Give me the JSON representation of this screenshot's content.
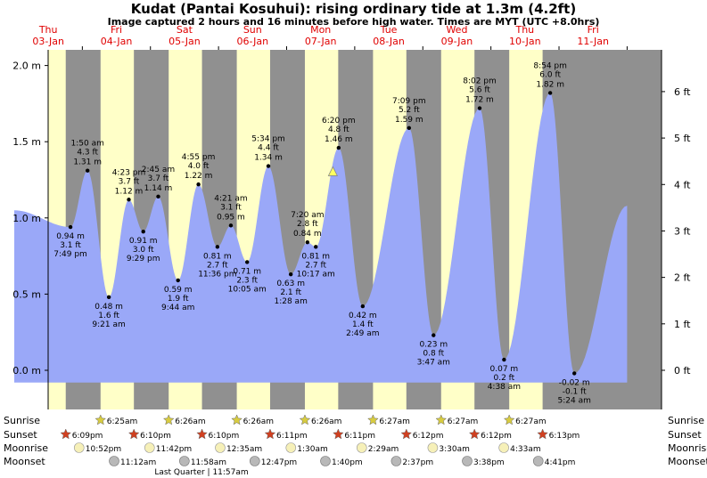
{
  "title": "Kudat (Pantai Kosuhui): rising  ordinary tide at 1.3m (4.2ft)",
  "subtitle": "Image captured 2 hours and 16 minutes before high water. Times are MYT (UTC +8.0hrs)",
  "colors": {
    "day": "#ffffc8",
    "night": "#909090",
    "tide": "#9aa8f8",
    "day_label": "#e00000",
    "sunrise_star": "#d8cc40",
    "sunset_star": "#d04020",
    "moon": "#f6f0b8",
    "moonset": "#b8b8b8"
  },
  "days": [
    {
      "name": "Thu",
      "date": "03-Jan"
    },
    {
      "name": "Fri",
      "date": "04-Jan"
    },
    {
      "name": "Sat",
      "date": "05-Jan"
    },
    {
      "name": "Sun",
      "date": "06-Jan"
    },
    {
      "name": "Mon",
      "date": "07-Jan"
    },
    {
      "name": "Tue",
      "date": "08-Jan"
    },
    {
      "name": "Wed",
      "date": "09-Jan"
    },
    {
      "name": "Thu",
      "date": "10-Jan"
    },
    {
      "name": "Fri",
      "date": "11-Jan"
    }
  ],
  "chart_data": {
    "type": "area",
    "title": "Kudat (Pantai Kosuhui): rising  ordinary tide at 1.3m (4.2ft)",
    "x_unit": "hours from 00:00 03-Jan (MYT)",
    "x_range": [
      0,
      216
    ],
    "ylim_m": [
      -0.1,
      2.1
    ],
    "y_ticks_m": [
      "2.0 m",
      "1.5 m",
      "1.0 m",
      "0.5 m",
      "0.0 m"
    ],
    "y_ticks_ft": [
      "6 ft",
      "5 ft",
      "4 ft",
      "3 ft",
      "2 ft",
      "1 ft",
      "0 ft"
    ],
    "grid": false,
    "start_level_m": 1.05,
    "end_level_m": 1.08,
    "current": {
      "label": "rising tide at 1.3m (4.2ft)",
      "level_m": 1.3
    },
    "extremes": [
      {
        "t": "7:49 pm",
        "m": "0.94 m",
        "ft": "3.1 ft",
        "x": 19.82,
        "y": 0.94,
        "pos": "below"
      },
      {
        "t": "1:50 am",
        "m": "1.31 m",
        "ft": "4.3 ft",
        "x": 25.83,
        "y": 1.31,
        "pos": "above"
      },
      {
        "t": "9:21 am",
        "m": "0.48 m",
        "ft": "1.6 ft",
        "x": 33.35,
        "y": 0.48,
        "pos": "below"
      },
      {
        "t": "4:23 pm",
        "m": "1.12 m",
        "ft": "3.7 ft",
        "x": 40.38,
        "y": 1.12,
        "pos": "above"
      },
      {
        "t": "9:29 pm",
        "m": "0.91 m",
        "ft": "3.0 ft",
        "x": 45.48,
        "y": 0.91,
        "pos": "below"
      },
      {
        "t": "2:45 am",
        "m": "1.14 m",
        "ft": "3.7 ft",
        "x": 50.75,
        "y": 1.14,
        "pos": "above"
      },
      {
        "t": "9:44 am",
        "m": "0.59 m",
        "ft": "1.9 ft",
        "x": 57.73,
        "y": 0.59,
        "pos": "below"
      },
      {
        "t": "4:55 pm",
        "m": "1.22 m",
        "ft": "4.0 ft",
        "x": 64.92,
        "y": 1.22,
        "pos": "above"
      },
      {
        "t": "11:36 pm",
        "m": "0.81 m",
        "ft": "2.7 ft",
        "x": 71.6,
        "y": 0.81,
        "pos": "below"
      },
      {
        "t": "4:21 am",
        "m": "0.95 m",
        "ft": "3.1 ft",
        "x": 76.35,
        "y": 0.95,
        "pos": "above"
      },
      {
        "t": "10:05 am",
        "m": "0.71 m",
        "ft": "2.3 ft",
        "x": 82.08,
        "y": 0.71,
        "pos": "below"
      },
      {
        "t": "5:34 pm",
        "m": "1.34 m",
        "ft": "4.4 ft",
        "x": 89.57,
        "y": 1.34,
        "pos": "above"
      },
      {
        "t": "1:28 am",
        "m": "0.63 m",
        "ft": "2.1 ft",
        "x": 97.47,
        "y": 0.63,
        "pos": "below"
      },
      {
        "t": "7:20 am",
        "m": "0.84 m",
        "ft": "2.8 ft",
        "x": 103.33,
        "y": 0.84,
        "pos": "above"
      },
      {
        "t": "10:17 am",
        "m": "0.81 m",
        "ft": "2.7 ft",
        "x": 106.28,
        "y": 0.81,
        "pos": "below"
      },
      {
        "t": "6:20 pm",
        "m": "1.46 m",
        "ft": "4.8 ft",
        "x": 114.33,
        "y": 1.46,
        "pos": "above"
      },
      {
        "t": "2:49 am",
        "m": "0.42 m",
        "ft": "1.4 ft",
        "x": 122.82,
        "y": 0.42,
        "pos": "below"
      },
      {
        "t": "7:09 pm",
        "m": "1.59 m",
        "ft": "5.2 ft",
        "x": 139.15,
        "y": 1.59,
        "pos": "above"
      },
      {
        "t": "3:47 am",
        "m": "0.23 m",
        "ft": "0.8 ft",
        "x": 147.78,
        "y": 0.23,
        "pos": "below"
      },
      {
        "t": "8:02 pm",
        "m": "1.72 m",
        "ft": "5.6 ft",
        "x": 164.03,
        "y": 1.72,
        "pos": "above"
      },
      {
        "t": "4:38 am",
        "m": "0.07 m",
        "ft": "0.2 ft",
        "x": 172.63,
        "y": 0.07,
        "pos": "below"
      },
      {
        "t": "8:54 pm",
        "m": "1.82 m",
        "ft": "6.0 ft",
        "x": 188.9,
        "y": 1.82,
        "pos": "above"
      },
      {
        "t": "5:24 am",
        "m": "-0.02 m",
        "ft": "-0.1 ft",
        "x": 197.4,
        "y": -0.02,
        "pos": "below"
      }
    ]
  },
  "rows": {
    "sunrise": "Sunrise",
    "sunset": "Sunset",
    "moonrise": "Moonrise",
    "moonset": "Moonset"
  },
  "sunrise": [
    {
      "x": 30.42,
      "label": "6:25am"
    },
    {
      "x": 54.43,
      "label": "6:26am"
    },
    {
      "x": 78.43,
      "label": "6:26am"
    },
    {
      "x": 102.43,
      "label": "6:26am"
    },
    {
      "x": 126.45,
      "label": "6:27am"
    },
    {
      "x": 150.45,
      "label": "6:27am"
    },
    {
      "x": 174.45,
      "label": "6:27am"
    }
  ],
  "sunset": [
    {
      "x": 18.15,
      "label": "6:09pm"
    },
    {
      "x": 42.17,
      "label": "6:10pm"
    },
    {
      "x": 66.17,
      "label": "6:10pm"
    },
    {
      "x": 90.18,
      "label": "6:11pm"
    },
    {
      "x": 114.18,
      "label": "6:11pm"
    },
    {
      "x": 138.2,
      "label": "6:12pm"
    },
    {
      "x": 162.2,
      "label": "6:12pm"
    },
    {
      "x": 186.22,
      "label": "6:13pm"
    }
  ],
  "moonrise": [
    {
      "x": 22.87,
      "label": "10:52pm"
    },
    {
      "x": 47.7,
      "label": "11:42pm"
    },
    {
      "x": 72.58,
      "label": "12:35am"
    },
    {
      "x": 97.5,
      "label": "1:30am"
    },
    {
      "x": 122.48,
      "label": "2:29am"
    },
    {
      "x": 147.5,
      "label": "3:30am"
    },
    {
      "x": 172.55,
      "label": "4:33am"
    }
  ],
  "moonset": [
    {
      "x": 35.2,
      "label": "11:12am"
    },
    {
      "x": 59.97,
      "label": "11:58am"
    },
    {
      "x": 84.78,
      "label": "12:47pm"
    },
    {
      "x": 109.67,
      "label": "1:40pm"
    },
    {
      "x": 134.62,
      "label": "2:37pm"
    },
    {
      "x": 159.63,
      "label": "3:38pm"
    },
    {
      "x": 184.68,
      "label": "4:41pm"
    }
  ],
  "moon_phase": "Last Quarter | 11:57am"
}
